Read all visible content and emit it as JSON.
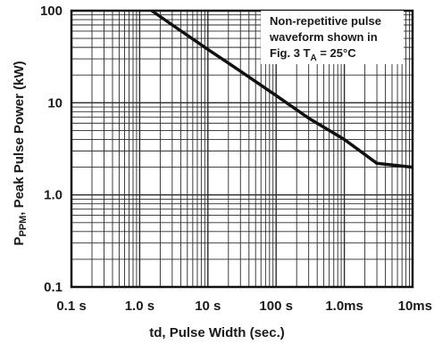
{
  "chart_data": {
    "type": "line",
    "x_scale": "log",
    "y_scale": "log",
    "xlabel": "td, Pulse Width (sec.)",
    "ylabel_parts": [
      "P",
      "PPM",
      ", Peak Pulse Power (kW)"
    ],
    "xlim": [
      0.1,
      10000
    ],
    "ylim": [
      0.1,
      100
    ],
    "x_ticks": [
      {
        "value": 0.1,
        "label": "0.1 s"
      },
      {
        "value": 1,
        "label": "1.0 s"
      },
      {
        "value": 10,
        "label": "10 s"
      },
      {
        "value": 100,
        "label": "100 s"
      },
      {
        "value": 1000,
        "label": "1.0ms"
      },
      {
        "value": 10000,
        "label": "10ms"
      }
    ],
    "y_ticks": [
      {
        "value": 0.1,
        "label": "0.1"
      },
      {
        "value": 1,
        "label": "1.0"
      },
      {
        "value": 10,
        "label": "10"
      },
      {
        "value": 100,
        "label": "100"
      }
    ],
    "grid": true,
    "series": [
      {
        "x": [
          1.5,
          3,
          10,
          30,
          100,
          300,
          1000,
          3000,
          10000
        ],
        "y": [
          100,
          70,
          38,
          22,
          12,
          6.8,
          4.0,
          2.2,
          2.0
        ]
      }
    ],
    "annotation": {
      "lines": [
        "Non-repetitive pulse",
        "waveform shown in",
        "Fig. 3 T",
        "A",
        " = 25°C"
      ]
    },
    "colors": {
      "line": "#111111",
      "grid": "#2a2a2a",
      "frame": "#111111",
      "background": "#ffffff"
    }
  }
}
